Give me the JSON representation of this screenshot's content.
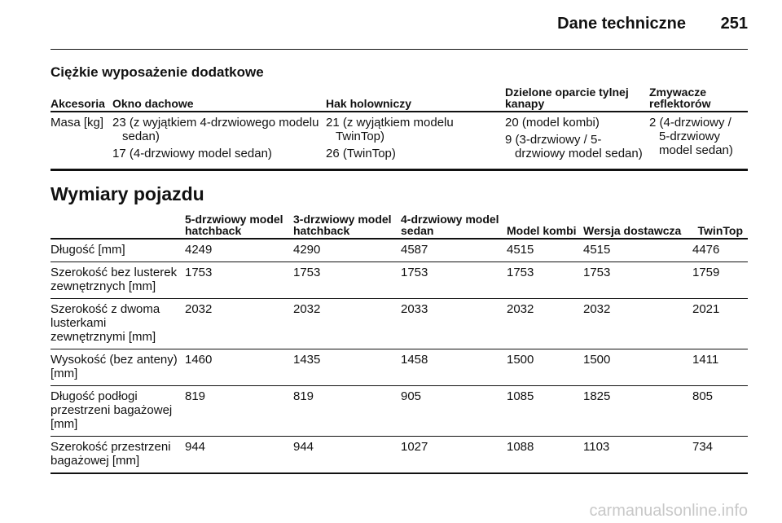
{
  "header": {
    "title": "Dane techniczne",
    "page_number": 251
  },
  "accessories": {
    "title": "Ciężkie wyposażenie dodatkowe",
    "columns": [
      "Akcesoria",
      "Okno dachowe",
      "Hak holowniczy",
      "Dzielone oparcie tylnej kanapy",
      "Zmywacze reflektorów"
    ],
    "rows": [
      [
        [
          "Masa [kg]"
        ],
        [
          "23 (z wyjątkiem 4-drzwiowego modelu sedan)",
          "17 (4-drzwiowy model sedan)"
        ],
        [
          "21 (z wyjątkiem modelu TwinTop)",
          "26 (TwinTop)"
        ],
        [
          "20 (model kombi)",
          "9 (3-drzwiowy / 5-drzwiowy model sedan)"
        ],
        [
          "2 (4-drzwiowy / 5-drzwiowy model sedan)"
        ]
      ]
    ]
  },
  "dimensions": {
    "title": "Wymiary pojazdu",
    "columns": [
      "5-drzwiowy model hatchback",
      "3-drzwiowy model hatchback",
      "4-drzwiowy model sedan",
      "Model kombi",
      "Wersja dostawcza",
      "TwinTop"
    ],
    "rows": [
      {
        "label": "Długość [mm]",
        "values": [
          4249,
          4290,
          4587,
          4515,
          4515,
          4476
        ]
      },
      {
        "label": "Szerokość bez lusterek zewnętrznych [mm]",
        "values": [
          1753,
          1753,
          1753,
          1753,
          1753,
          1759
        ]
      },
      {
        "label": "Szerokość z dwoma lusterkami zewnętrznymi [mm]",
        "values": [
          2032,
          2032,
          2033,
          2032,
          2032,
          2021
        ]
      },
      {
        "label": "Wysokość (bez anteny) [mm]",
        "values": [
          1460,
          1435,
          1458,
          1500,
          1500,
          1411
        ]
      },
      {
        "label": "Długość podłogi przestrzeni bagażowej [mm]",
        "values": [
          819,
          819,
          905,
          1085,
          1825,
          805
        ]
      },
      {
        "label": "Szerokość przestrzeni bagażowej [mm]",
        "values": [
          944,
          944,
          1027,
          1088,
          1103,
          734
        ]
      }
    ]
  },
  "watermark": "carmanualsonline.info"
}
